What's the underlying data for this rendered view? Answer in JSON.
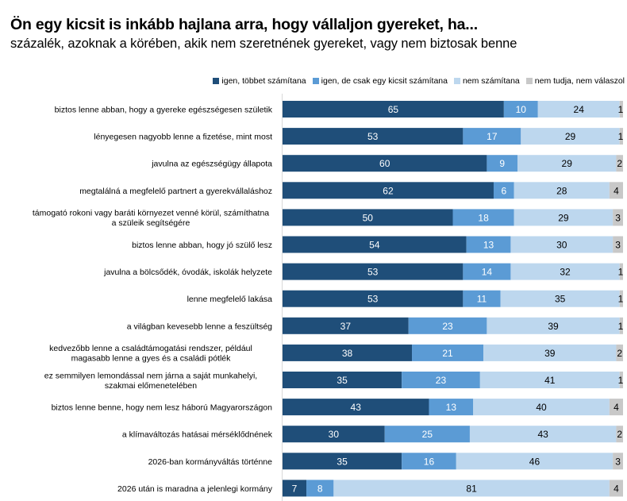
{
  "chart_data": {
    "type": "bar",
    "orientation": "horizontal",
    "stacked": true,
    "title": "Ön egy kicsit is inkább hajlana arra, hogy vállaljon gyereket, ha...",
    "subtitle": "százalék, azoknak a körében, akik nem szeretnének gyereket, vagy nem biztosak benne",
    "xlabel": "",
    "ylabel": "",
    "xlim": [
      0,
      100
    ],
    "grid": false,
    "legend_position": "top-right",
    "categories": [
      [
        "biztos lenne abban, hogy a gyereke egészségesen születik"
      ],
      [
        "lényegesen nagyobb lenne a fizetése, mint most"
      ],
      [
        "javulna az egészségügy állapota"
      ],
      [
        "megtalálná a megfelelő partnert a gyerekvállaláshoz"
      ],
      [
        "támogató rokoni vagy baráti környezet venné körül, számíthatna",
        "a szüleik segítségére"
      ],
      [
        "biztos lenne abban, hogy jó szülő lesz"
      ],
      [
        "javulna a bölcsődék, óvodák, iskolák helyzete"
      ],
      [
        "lenne megfelelő lakása"
      ],
      [
        "a világban kevesebb lenne a feszültség"
      ],
      [
        "kedvezőbb lenne a családtámogatási rendszer, például",
        "magasabb lenne a gyes és a családi pótlék"
      ],
      [
        "ez semmilyen lemondással nem járna a saját munkahelyi,",
        "szakmai előmenetelében"
      ],
      [
        "biztos lenne benne, hogy nem lesz háború Magyarországon"
      ],
      [
        "a klímaváltozás hatásai mérséklődnének"
      ],
      [
        "2026-ban kormányváltás történne"
      ],
      [
        "2026 után is maradna a jelenlegi kormány"
      ]
    ],
    "series": [
      {
        "name": "igen, többet számítana",
        "color": "#1f4e79",
        "label_color": "#ffffff",
        "values": [
          65,
          53,
          60,
          62,
          50,
          54,
          53,
          53,
          37,
          38,
          35,
          43,
          30,
          35,
          7
        ]
      },
      {
        "name": "igen, de csak egy kicsit számítana",
        "color": "#5b9bd5",
        "label_color": "#ffffff",
        "values": [
          10,
          17,
          9,
          6,
          18,
          13,
          14,
          11,
          23,
          21,
          23,
          13,
          25,
          16,
          8
        ]
      },
      {
        "name": "nem számítana",
        "color": "#bdd7ee",
        "label_color": "#000000",
        "values": [
          24,
          29,
          29,
          28,
          29,
          30,
          32,
          35,
          39,
          39,
          41,
          40,
          43,
          46,
          81
        ]
      },
      {
        "name": "nem tudja, nem válaszol",
        "color": "#c8c8c8",
        "label_color": "#000000",
        "values": [
          1,
          1,
          2,
          4,
          3,
          3,
          1,
          1,
          1,
          2,
          1,
          4,
          2,
          3,
          4
        ]
      }
    ]
  }
}
